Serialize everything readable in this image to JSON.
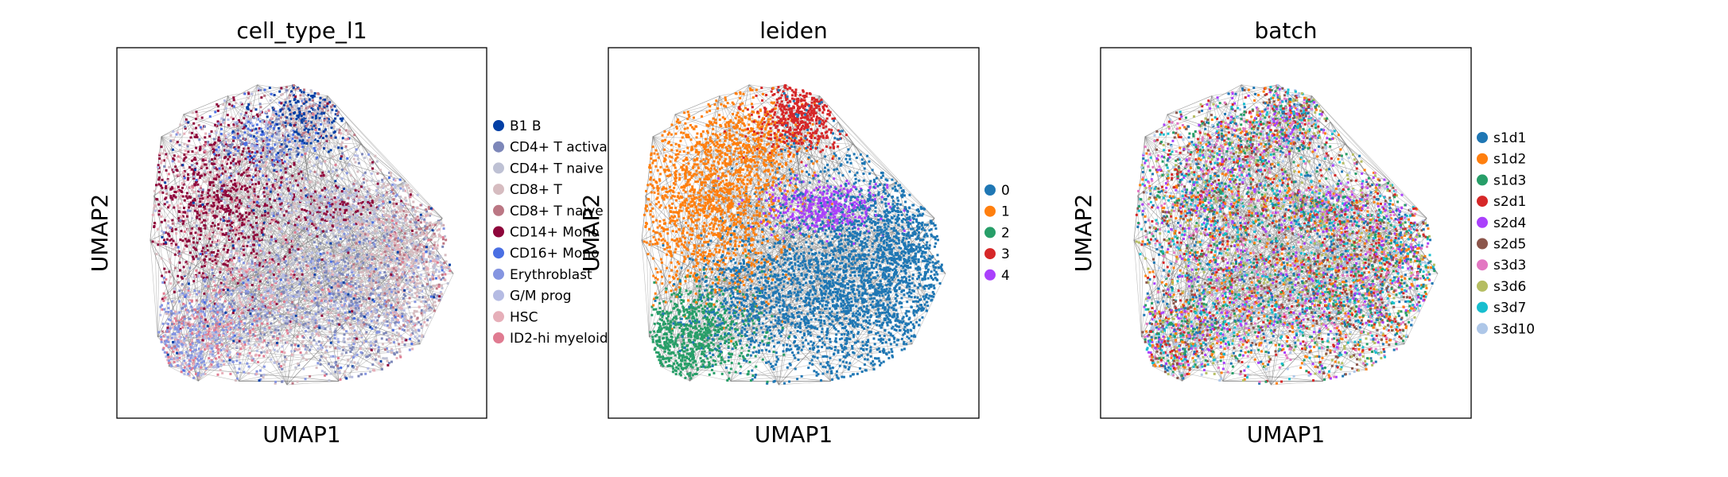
{
  "chart_data": [
    {
      "type": "scatter",
      "title": "cell_type_l1",
      "xlabel": "UMAP1",
      "ylabel": "UMAP2",
      "grid": false,
      "ticks": false,
      "legend_position": "right",
      "edges_color": "#808080",
      "legend": [
        {
          "name": "B1 B",
          "color": "#023fa5"
        },
        {
          "name": "CD4+ T activa",
          "color": "#7d87b9"
        },
        {
          "name": "CD4+ T naive",
          "color": "#bec1d4"
        },
        {
          "name": "CD8+ T",
          "color": "#d6bcc0"
        },
        {
          "name": "CD8+ T naive",
          "color": "#bb7784"
        },
        {
          "name": "CD14+ Mono",
          "color": "#8e063b"
        },
        {
          "name": "CD16+ Mono",
          "color": "#4a6fe3"
        },
        {
          "name": "Erythroblast",
          "color": "#8595e1"
        },
        {
          "name": "G/M prog",
          "color": "#b5bbe3"
        },
        {
          "name": "HSC",
          "color": "#e6afb9"
        },
        {
          "name": "ID2-hi myeloid",
          "color": "#e07b91"
        }
      ]
    },
    {
      "type": "scatter",
      "title": "leiden",
      "xlabel": "UMAP1",
      "ylabel": "UMAP2",
      "grid": false,
      "ticks": false,
      "legend_position": "right",
      "edges_color": "#808080",
      "legend": [
        {
          "name": "0",
          "color": "#1f77b4"
        },
        {
          "name": "1",
          "color": "#ff7f0e"
        },
        {
          "name": "2",
          "color": "#279e68"
        },
        {
          "name": "3",
          "color": "#d62728"
        },
        {
          "name": "4",
          "color": "#aa40fc"
        }
      ]
    },
    {
      "type": "scatter",
      "title": "batch",
      "xlabel": "UMAP1",
      "ylabel": "UMAP2",
      "grid": false,
      "ticks": false,
      "legend_position": "right",
      "edges_color": "#808080",
      "legend": [
        {
          "name": "s1d1",
          "color": "#1f77b4"
        },
        {
          "name": "s1d2",
          "color": "#ff7f0e"
        },
        {
          "name": "s1d3",
          "color": "#279e68"
        },
        {
          "name": "s2d1",
          "color": "#d62728"
        },
        {
          "name": "s2d4",
          "color": "#aa40fc"
        },
        {
          "name": "s2d5",
          "color": "#8c564b"
        },
        {
          "name": "s3d3",
          "color": "#e377c2"
        },
        {
          "name": "s3d6",
          "color": "#b5bd61"
        },
        {
          "name": "s3d7",
          "color": "#17becf"
        },
        {
          "name": "s3d10",
          "color": "#aec7e8"
        }
      ]
    }
  ]
}
